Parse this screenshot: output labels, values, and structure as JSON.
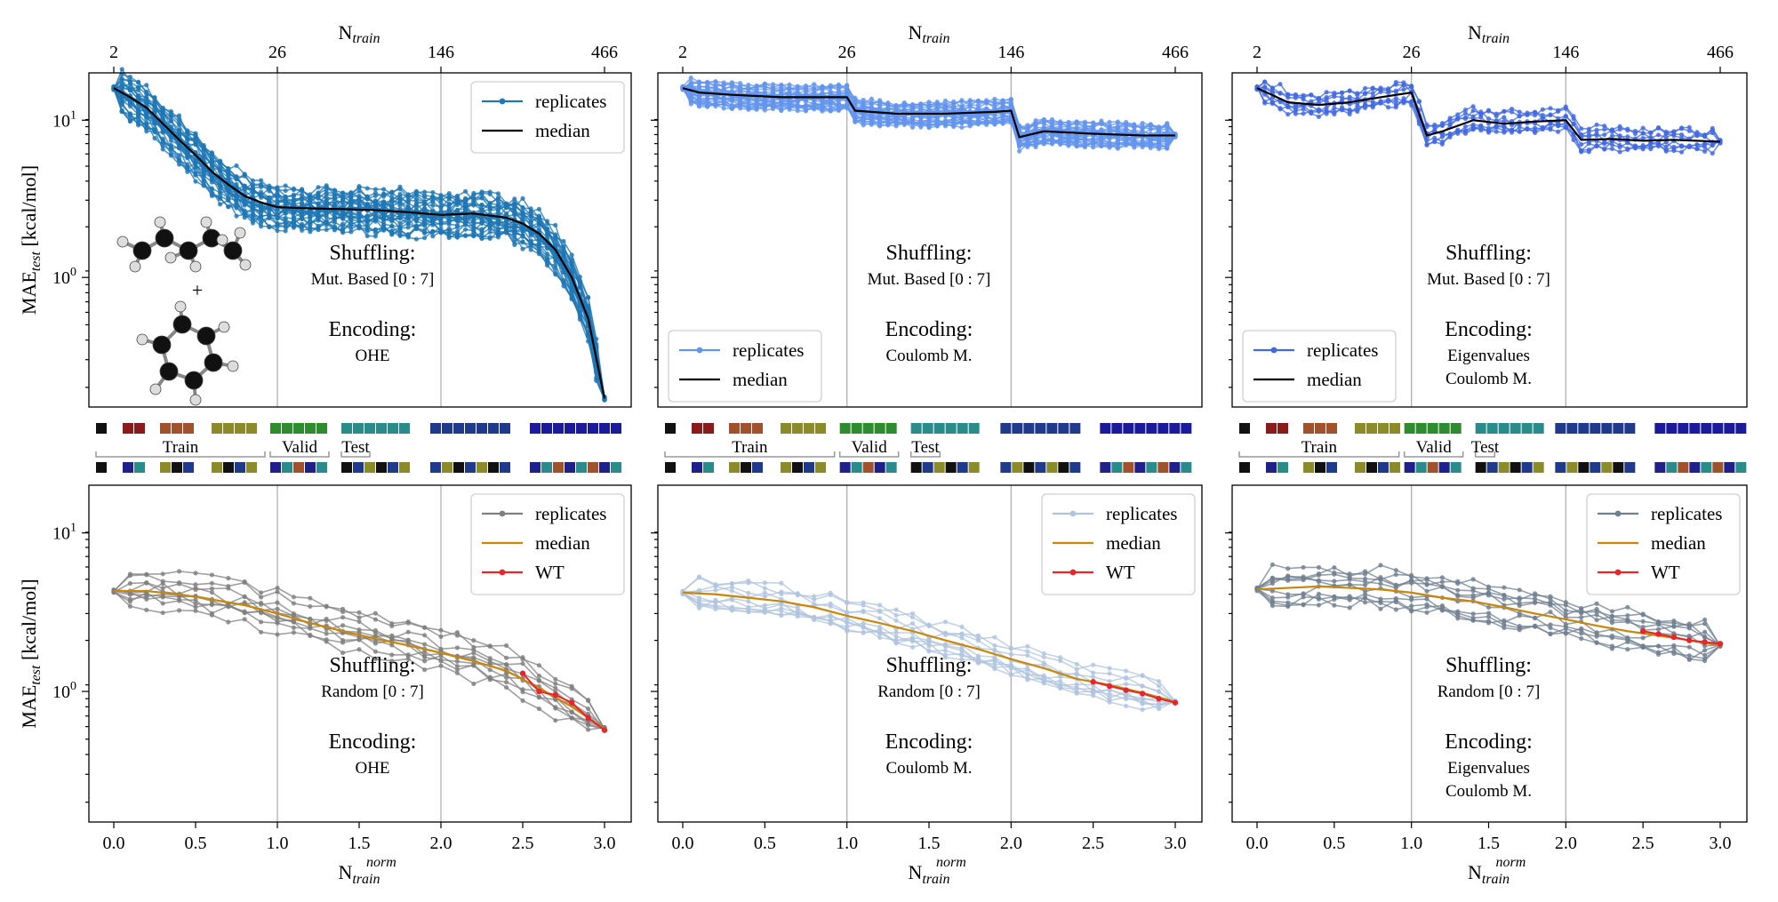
{
  "figure": {
    "top_xlabel": "N",
    "top_xlabel_sub": "train",
    "top_ticks": [
      "2",
      "26",
      "146",
      "466"
    ],
    "ylabel_main": "MAE",
    "ylabel_sub": "test",
    "ylabel_unit": " [kcal/mol]",
    "bottom_xlabel": "N",
    "bottom_xlabel_sub": "train",
    "bottom_xlabel_sup": "norm",
    "bottom_ticks": [
      "0.0",
      "0.5",
      "1.0",
      "1.5",
      "2.0",
      "2.5",
      "3.0"
    ],
    "y_ticks": [
      {
        "base": "10",
        "exp": "1",
        "value": 10
      },
      {
        "base": "10",
        "exp": "0",
        "value": 1
      }
    ],
    "molecule_plus": "+",
    "split_labels": {
      "train": "Train",
      "valid": "Valid",
      "test": "Test"
    }
  },
  "colors": {
    "replicates_blue": "#1f77b4",
    "replicates_cornflower": "#6495ed",
    "replicates_royal": "#4169e1",
    "replicates_gray": "#808080",
    "replicates_lightblue": "#b0c4de",
    "replicates_slate": "#708090",
    "median_black": "#000000",
    "median_orange": "#c8860a",
    "wt_red": "#e8262a"
  },
  "panels": [
    {
      "id": "p1",
      "shuffling_title": "Shuffling:",
      "shuffling": "Mut. Based [0 : 7]",
      "encoding_title": "Encoding:",
      "encoding": [
        "OHE"
      ],
      "legend": [
        {
          "label": "replicates",
          "kind": "rep"
        },
        {
          "label": "median",
          "kind": "med"
        }
      ]
    },
    {
      "id": "p2",
      "shuffling_title": "Shuffling:",
      "shuffling": "Mut. Based [0 : 7]",
      "encoding_title": "Encoding:",
      "encoding": [
        "Coulomb M."
      ],
      "legend": [
        {
          "label": "replicates",
          "kind": "rep"
        },
        {
          "label": "median",
          "kind": "med"
        }
      ]
    },
    {
      "id": "p3",
      "shuffling_title": "Shuffling:",
      "shuffling": "Mut. Based [0 : 7]",
      "encoding_title": "Encoding:",
      "encoding": [
        "Eigenvalues",
        "Coulomb M."
      ],
      "legend": [
        {
          "label": "replicates",
          "kind": "rep"
        },
        {
          "label": "median",
          "kind": "med"
        }
      ]
    },
    {
      "id": "p4",
      "shuffling_title": "Shuffling:",
      "shuffling": "Random [0 : 7]",
      "encoding_title": "Encoding:",
      "encoding": [
        "OHE"
      ],
      "legend": [
        {
          "label": "replicates",
          "kind": "rep"
        },
        {
          "label": "median",
          "kind": "med"
        },
        {
          "label": "WT",
          "kind": "wt"
        }
      ]
    },
    {
      "id": "p5",
      "shuffling_title": "Shuffling:",
      "shuffling": "Random [0 : 7]",
      "encoding_title": "Encoding:",
      "encoding": [
        "Coulomb M."
      ],
      "legend": [
        {
          "label": "replicates",
          "kind": "rep"
        },
        {
          "label": "median",
          "kind": "med"
        },
        {
          "label": "WT",
          "kind": "wt"
        }
      ]
    },
    {
      "id": "p6",
      "shuffling_title": "Shuffling:",
      "shuffling": "Random [0 : 7]",
      "encoding_title": "Encoding:",
      "encoding": [
        "Eigenvalues",
        "Coulomb M."
      ],
      "legend": [
        {
          "label": "replicates",
          "kind": "rep"
        },
        {
          "label": "median",
          "kind": "med"
        },
        {
          "label": "WT",
          "kind": "wt"
        }
      ]
    }
  ],
  "chart_data": [
    {
      "type": "line",
      "panel": "top-left",
      "xlabel": "N_train",
      "ylabel": "MAE_test [kcal/mol]",
      "yscale": "log",
      "ylim": [
        0.15,
        20
      ],
      "x_ticks": [
        2,
        26,
        146,
        466
      ],
      "x_norm": [
        0,
        1,
        2,
        3
      ],
      "median": {
        "x": [
          0,
          0.1,
          0.2,
          0.3,
          0.4,
          0.5,
          0.6,
          0.7,
          0.8,
          0.9,
          1.0,
          1.2,
          1.4,
          1.6,
          1.8,
          2.0,
          2.2,
          2.4,
          2.5,
          2.6,
          2.7,
          2.8,
          2.9,
          3.0
        ],
        "y": [
          16,
          14,
          12,
          9.5,
          7.5,
          6,
          4.7,
          3.9,
          3.3,
          3.0,
          2.8,
          2.75,
          2.72,
          2.68,
          2.6,
          2.5,
          2.55,
          2.4,
          2.2,
          1.9,
          1.5,
          1.0,
          0.55,
          0.17
        ]
      },
      "replicate_band_factor": 1.35,
      "n_replicates": 30
    },
    {
      "type": "line",
      "panel": "top-middle",
      "yscale": "log",
      "ylim": [
        0.15,
        20
      ],
      "median": {
        "x": [
          0,
          0.1,
          0.3,
          0.6,
          0.9,
          1.0,
          1.05,
          1.3,
          1.6,
          1.9,
          2.0,
          2.05,
          2.2,
          2.5,
          2.8,
          3.0
        ],
        "y": [
          16,
          15,
          14.5,
          14,
          14,
          14,
          11.5,
          11,
          11,
          11.3,
          11.5,
          7.8,
          8.5,
          8.2,
          8.0,
          8.0
        ]
      },
      "replicate_band_factor": 1.18,
      "n_replicates": 30
    },
    {
      "type": "line",
      "panel": "top-right",
      "yscale": "log",
      "ylim": [
        0.15,
        20
      ],
      "median": {
        "x": [
          0,
          0.2,
          0.4,
          0.6,
          0.8,
          1.0,
          1.1,
          1.2,
          1.4,
          1.6,
          1.8,
          2.0,
          2.1,
          2.3,
          2.5,
          2.7,
          3.0
        ],
        "y": [
          16,
          13,
          12.5,
          13,
          14,
          15,
          8,
          8.5,
          10,
          9.5,
          9.8,
          10,
          7.5,
          7.6,
          7.4,
          7.5,
          7.3
        ]
      },
      "replicate_band_factor": 1.25,
      "n_replicates": 8
    },
    {
      "type": "line",
      "panel": "bottom-left",
      "yscale": "log",
      "ylim": [
        0.15,
        20
      ],
      "median": {
        "x": [
          0,
          0.2,
          0.4,
          0.6,
          0.8,
          1.0,
          1.2,
          1.4,
          1.6,
          1.8,
          2.0,
          2.2,
          2.4,
          2.6,
          2.8,
          3.0
        ],
        "y": [
          4.3,
          4.3,
          4.1,
          3.8,
          3.5,
          3.1,
          2.7,
          2.4,
          2.15,
          1.95,
          1.75,
          1.55,
          1.35,
          1.05,
          0.8,
          0.58
        ]
      },
      "wt": {
        "x": [
          2.5,
          2.6,
          2.7,
          2.8,
          2.9,
          3.0
        ],
        "y": [
          1.3,
          1.0,
          0.95,
          0.85,
          0.68,
          0.57
        ]
      },
      "replicate_band_factor": 1.35,
      "n_replicates": 10
    },
    {
      "type": "line",
      "panel": "bottom-middle",
      "yscale": "log",
      "ylim": [
        0.15,
        20
      ],
      "median": {
        "x": [
          0,
          0.2,
          0.4,
          0.6,
          0.8,
          1.0,
          1.2,
          1.4,
          1.6,
          1.8,
          2.0,
          2.2,
          2.4,
          2.6,
          2.8,
          3.0
        ],
        "y": [
          4.2,
          4.1,
          3.9,
          3.7,
          3.4,
          3.0,
          2.7,
          2.4,
          2.1,
          1.85,
          1.6,
          1.4,
          1.2,
          1.1,
          0.98,
          0.86
        ]
      },
      "wt": {
        "x": [
          2.5,
          2.6,
          2.7,
          2.8,
          2.9,
          3.0
        ],
        "y": [
          1.15,
          1.08,
          1.02,
          0.97,
          0.9,
          0.85
        ]
      },
      "replicate_band_factor": 1.3,
      "n_replicates": 10
    },
    {
      "type": "line",
      "panel": "bottom-right",
      "yscale": "log",
      "ylim": [
        0.15,
        20
      ],
      "median": {
        "x": [
          0,
          0.2,
          0.4,
          0.6,
          0.8,
          1.0,
          1.2,
          1.4,
          1.6,
          1.8,
          2.0,
          2.2,
          2.4,
          2.6,
          2.8,
          3.0
        ],
        "y": [
          4.4,
          4.5,
          4.6,
          4.5,
          4.4,
          4.2,
          3.9,
          3.7,
          3.4,
          3.1,
          2.85,
          2.6,
          2.4,
          2.25,
          2.1,
          1.95
        ]
      },
      "wt": {
        "x": [
          2.5,
          2.6,
          2.7,
          2.8,
          2.9,
          3.0
        ],
        "y": [
          2.4,
          2.3,
          2.2,
          2.1,
          2.05,
          2.0
        ]
      },
      "replicate_band_factor": 1.35,
      "n_replicates": 10
    }
  ]
}
